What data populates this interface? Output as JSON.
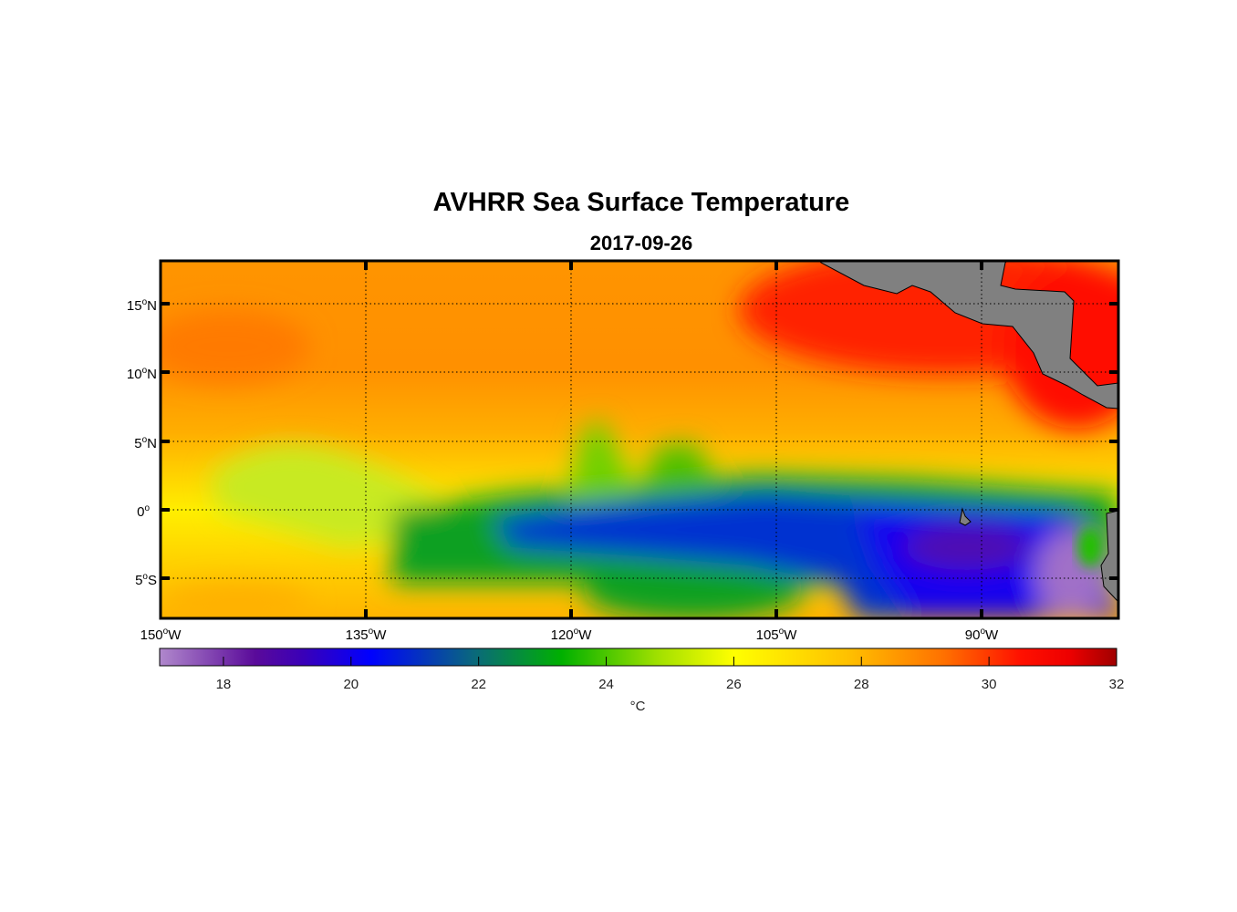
{
  "title": "AVHRR Sea Surface Temperature",
  "subtitle": "2017-09-26",
  "map": {
    "lon_range": [
      -150,
      -80
    ],
    "lat_range": [
      -8,
      18
    ],
    "lat_labels": [
      {
        "lat": 15,
        "text": "15",
        "hemi": "N"
      },
      {
        "lat": 10,
        "text": "10",
        "hemi": "N"
      },
      {
        "lat": 5,
        "text": "5",
        "hemi": "N"
      },
      {
        "lat": 0,
        "text": "0",
        "hemi": ""
      },
      {
        "lat": -5,
        "text": "5",
        "hemi": "S"
      }
    ],
    "lon_labels": [
      {
        "lon": -150,
        "text": "150",
        "hemi": "W"
      },
      {
        "lon": -135,
        "text": "135",
        "hemi": "W"
      },
      {
        "lon": -120,
        "text": "120",
        "hemi": "W"
      },
      {
        "lon": -105,
        "text": "105",
        "hemi": "W"
      },
      {
        "lon": -90,
        "text": "90",
        "hemi": "W"
      }
    ],
    "land_color": "#808080"
  },
  "colorbar": {
    "range": [
      17,
      32
    ],
    "ticks": [
      "18",
      "20",
      "22",
      "24",
      "26",
      "28",
      "30",
      "32"
    ],
    "unit": "°C",
    "colors": [
      "#b088cc",
      "#5a0a9a",
      "#3a00b8",
      "#0000ff",
      "#0a7a6a",
      "#00b000",
      "#a0e000",
      "#ffff00",
      "#ffc000",
      "#ff8000",
      "#ff3000",
      "#ff0000",
      "#a00000"
    ]
  }
}
